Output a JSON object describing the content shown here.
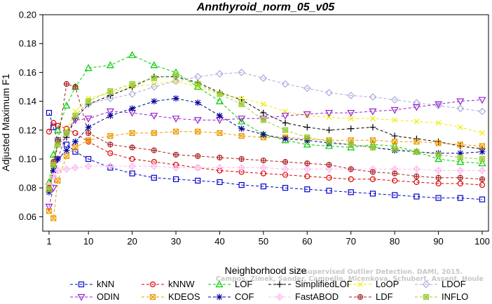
{
  "chart_data": {
    "type": "line",
    "title": "Annthyroid_norm_05_v05",
    "xlabel": "Neighborhood size",
    "ylabel": "Adjusted Maximum F1",
    "xlim": [
      1,
      100
    ],
    "ylim": [
      0.05,
      0.2
    ],
    "x_ticks": [
      "1",
      "10",
      "20",
      "30",
      "40",
      "50",
      "60",
      "70",
      "80",
      "90",
      "100"
    ],
    "y_ticks": [
      "0.06",
      "0.08",
      "0.10",
      "0.12",
      "0.14",
      "0.16",
      "0.18",
      "0.20"
    ],
    "watermark": [
      "Campos, Zimek, Sander, Campello, Micenkova, Schubert, Assent, Houle",
      "Unsupervised Outlier Detection. DAMI, 2015."
    ],
    "x": [
      1,
      2,
      3,
      5,
      7,
      10,
      15,
      20,
      25,
      30,
      35,
      40,
      45,
      50,
      55,
      60,
      65,
      70,
      75,
      80,
      85,
      90,
      95,
      100
    ],
    "series": [
      {
        "name": "kNN",
        "color": "#0000cc",
        "marker": "square",
        "values": [
          0.132,
          0.122,
          0.113,
          0.11,
          0.105,
          0.1,
          0.094,
          0.09,
          0.087,
          0.086,
          0.085,
          0.084,
          0.082,
          0.081,
          0.08,
          0.079,
          0.078,
          0.077,
          0.076,
          0.075,
          0.074,
          0.073,
          0.073,
          0.072
        ]
      },
      {
        "name": "kNNW",
        "color": "#dd0000",
        "marker": "circle",
        "values": [
          0.119,
          0.125,
          0.123,
          0.121,
          0.118,
          0.112,
          0.104,
          0.1,
          0.098,
          0.096,
          0.094,
          0.092,
          0.091,
          0.09,
          0.089,
          0.088,
          0.087,
          0.086,
          0.086,
          0.085,
          0.084,
          0.083,
          0.083,
          0.082
        ]
      },
      {
        "name": "LOF",
        "color": "#00cc00",
        "marker": "triangle",
        "values": [
          0.084,
          0.103,
          0.12,
          0.137,
          0.15,
          0.163,
          0.165,
          0.172,
          0.165,
          0.16,
          0.15,
          0.14,
          0.126,
          0.117,
          0.113,
          0.11,
          0.109,
          0.108,
          0.11,
          0.109,
          0.105,
          0.1,
          0.098,
          0.097
        ]
      },
      {
        "name": "SimplifiedLOF",
        "color": "#000000",
        "marker": "plus",
        "values": [
          0.078,
          0.095,
          0.11,
          0.115,
          0.128,
          0.138,
          0.144,
          0.15,
          0.157,
          0.157,
          0.153,
          0.146,
          0.141,
          0.132,
          0.125,
          0.122,
          0.12,
          0.121,
          0.122,
          0.116,
          0.114,
          0.112,
          0.109,
          0.107
        ]
      },
      {
        "name": "LoOP",
        "color": "#eeee00",
        "marker": "x",
        "values": [
          0.082,
          0.098,
          0.113,
          0.12,
          0.133,
          0.142,
          0.146,
          0.15,
          0.152,
          0.154,
          0.15,
          0.145,
          0.142,
          0.138,
          0.133,
          0.13,
          0.129,
          0.128,
          0.128,
          0.127,
          0.126,
          0.125,
          0.122,
          0.118
        ]
      },
      {
        "name": "LDOF",
        "color": "#aaaadd",
        "marker": "diamond",
        "values": [
          0.08,
          0.097,
          0.112,
          0.118,
          0.128,
          0.138,
          0.142,
          0.145,
          0.15,
          0.154,
          0.157,
          0.159,
          0.16,
          0.156,
          0.152,
          0.149,
          0.146,
          0.144,
          0.143,
          0.141,
          0.139,
          0.137,
          0.135,
          0.133
        ]
      },
      {
        "name": "ODIN",
        "color": "#9922cc",
        "marker": "triangle-down",
        "values": [
          0.067,
          0.08,
          0.1,
          0.118,
          0.127,
          0.128,
          0.133,
          0.132,
          0.13,
          0.128,
          0.127,
          0.127,
          0.128,
          0.128,
          0.13,
          0.131,
          0.132,
          0.132,
          0.133,
          0.134,
          0.136,
          0.138,
          0.14,
          0.141
        ]
      },
      {
        "name": "KDEOS",
        "color": "#ee9900",
        "marker": "square-x",
        "values": [
          0.064,
          0.059,
          0.085,
          0.102,
          0.108,
          0.113,
          0.116,
          0.118,
          0.118,
          0.119,
          0.119,
          0.118,
          0.116,
          0.115,
          0.115,
          0.114,
          0.113,
          0.113,
          0.113,
          0.112,
          0.112,
          0.111,
          0.11,
          0.109
        ]
      },
      {
        "name": "COF",
        "color": "#000099",
        "marker": "asterisk",
        "values": [
          0.077,
          0.092,
          0.1,
          0.106,
          0.112,
          0.122,
          0.13,
          0.135,
          0.14,
          0.142,
          0.139,
          0.13,
          0.121,
          0.117,
          0.114,
          0.113,
          0.111,
          0.11,
          0.108,
          0.106,
          0.105,
          0.104,
          0.104,
          0.105
        ]
      },
      {
        "name": "FastABOD",
        "color": "#ffbbee",
        "marker": "diamond-plus",
        "values": [
          0.082,
          0.088,
          0.092,
          0.093,
          0.094,
          0.095,
          0.095,
          0.095,
          0.095,
          0.094,
          0.094,
          0.094,
          0.094,
          0.094,
          0.093,
          0.093,
          0.093,
          0.093,
          0.093,
          0.093,
          0.093,
          0.092,
          0.092,
          0.092
        ]
      },
      {
        "name": "LDF",
        "color": "#aa2222",
        "marker": "circle-plus",
        "values": [
          0.08,
          0.098,
          0.112,
          0.152,
          0.15,
          0.118,
          0.11,
          0.108,
          0.106,
          0.103,
          0.102,
          0.101,
          0.1,
          0.099,
          0.098,
          0.097,
          0.096,
          0.093,
          0.091,
          0.09,
          0.088,
          0.087,
          0.087,
          0.086
        ]
      },
      {
        "name": "INFLO",
        "color": "#99cc33",
        "marker": "square-cross",
        "values": [
          0.079,
          0.096,
          0.11,
          0.118,
          0.13,
          0.14,
          0.147,
          0.152,
          0.156,
          0.158,
          0.152,
          0.145,
          0.138,
          0.127,
          0.12,
          0.115,
          0.112,
          0.11,
          0.108,
          0.107,
          0.105,
          0.103,
          0.101,
          0.1
        ]
      }
    ],
    "legend_position": "bottom",
    "grid": false
  }
}
